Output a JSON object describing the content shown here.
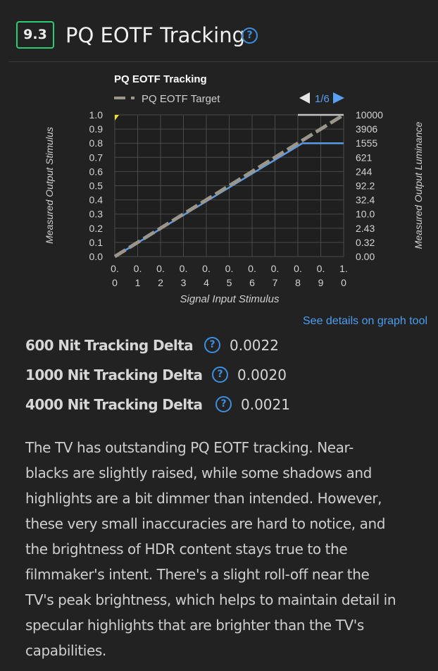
{
  "section": {
    "score": "9.3",
    "title": "PQ EOTF Tracking",
    "help_icon": "question-circle-icon"
  },
  "chart_data": {
    "type": "line",
    "title": "PQ EOTF Tracking",
    "legend": [
      {
        "name": "PQ EOTF Target",
        "style": "dashed",
        "color": "#9a968c"
      }
    ],
    "pager": {
      "label": "1/6",
      "prev_icon": "triangle-left-icon",
      "next_icon": "triangle-right-icon"
    },
    "xlabel": "Signal Input Stimulus",
    "ylabel_left": "Measured Output Stimulus",
    "ylabel_right": "Measured Output Luminance",
    "xlim": [
      0,
      1
    ],
    "ylim": [
      0,
      1
    ],
    "grid": true,
    "x_ticks": [
      {
        "top": "0.",
        "bottom": "0"
      },
      {
        "top": "0.",
        "bottom": "1"
      },
      {
        "top": "0.",
        "bottom": "2"
      },
      {
        "top": "0.",
        "bottom": "3"
      },
      {
        "top": "0.",
        "bottom": "4"
      },
      {
        "top": "0.",
        "bottom": "5"
      },
      {
        "top": "0.",
        "bottom": "6"
      },
      {
        "top": "0.",
        "bottom": "7"
      },
      {
        "top": "0.",
        "bottom": "8"
      },
      {
        "top": "0.",
        "bottom": "9"
      },
      {
        "top": "1.",
        "bottom": "0"
      }
    ],
    "y_ticks_left": [
      "0.0",
      "0.1",
      "0.2",
      "0.3",
      "0.4",
      "0.5",
      "0.6",
      "0.7",
      "0.8",
      "0.9",
      "1.0"
    ],
    "y_ticks_right": [
      "0.00",
      "0.32",
      "2.43",
      "10.0",
      "32.4",
      "92.2",
      "244",
      "621",
      "1555",
      "3906",
      "10000"
    ],
    "series": [
      {
        "name": "PQ EOTF Target",
        "color": "#9a968c",
        "style": "dashed",
        "x": [
          0.0,
          1.0
        ],
        "y": [
          0.0,
          1.0
        ]
      },
      {
        "color": "#5b9be6",
        "style": "solid",
        "x": [
          0.0,
          0.8,
          0.82,
          1.0
        ],
        "y": [
          0.0,
          0.78,
          0.8,
          0.8
        ]
      },
      {
        "color": "#c2c2c2",
        "style": "solid",
        "x": [
          0.8,
          1.0
        ],
        "y": [
          1.0,
          1.0
        ]
      }
    ],
    "marker": {
      "x": 0.0,
      "y": 1.0,
      "color": "#f0e020"
    }
  },
  "details_link": "See details on graph tool",
  "metrics": [
    {
      "label": "600 Nit Tracking Delta",
      "value": "0.0022"
    },
    {
      "label": "1000 Nit Tracking Delta",
      "value": "0.0020"
    },
    {
      "label": "4000 Nit Tracking Delta",
      "value": "0.0021"
    }
  ],
  "description_lines": [
    "The TV has outstanding PQ EOTF tracking. Near-",
    "blacks are slightly raised, while some shadows and",
    "highlights are a bit dimmer than intended. However,",
    "these very small inaccuracies are hard to notice, and",
    "the brightness of HDR content stays true to the",
    "filmmaker's intent. There's a slight roll-off near the",
    "TV's peak brightness, which helps to maintain detail in",
    "specular highlights that are brighter than the TV's",
    "capabilities."
  ]
}
